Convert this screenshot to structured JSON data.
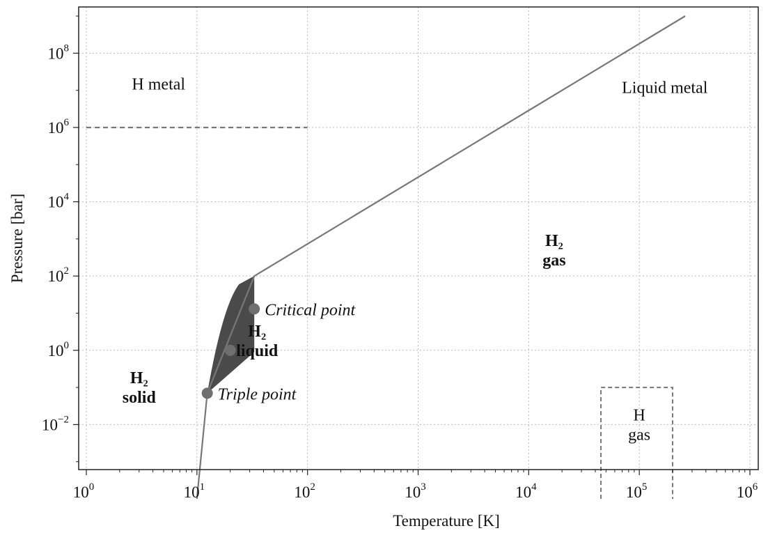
{
  "chart_data": {
    "type": "line",
    "title": "",
    "xlabel": "Temperature [K]",
    "ylabel": "Pressure [bar]",
    "xscale": "log",
    "yscale": "log",
    "xlim": [
      1,
      1000000
    ],
    "ylim": [
      0.0001,
      2000000000
    ],
    "grid": true,
    "x_ticks": [
      {
        "base": "10",
        "exp": "0",
        "value": 1
      },
      {
        "base": "10",
        "exp": "1",
        "value": 10
      },
      {
        "base": "10",
        "exp": "2",
        "value": 100
      },
      {
        "base": "10",
        "exp": "3",
        "value": 1000
      },
      {
        "base": "10",
        "exp": "4",
        "value": 10000
      },
      {
        "base": "10",
        "exp": "5",
        "value": 100000
      },
      {
        "base": "10",
        "exp": "6",
        "value": 1000000
      }
    ],
    "y_ticks": [
      {
        "base": "10",
        "exp": "−2",
        "value": 0.01
      },
      {
        "base": "10",
        "exp": "0",
        "value": 1
      },
      {
        "base": "10",
        "exp": "2",
        "value": 100
      },
      {
        "base": "10",
        "exp": "4",
        "value": 10000
      },
      {
        "base": "10",
        "exp": "6",
        "value": 1000000
      },
      {
        "base": "10",
        "exp": "8",
        "value": 100000000
      }
    ],
    "series": [
      {
        "style": "solid",
        "color": "#777777",
        "points": [
          [
            10,
            0.0001
          ],
          [
            12.4,
            0.07
          ],
          [
            33,
            100
          ],
          [
            260000,
            1000000000
          ]
        ]
      },
      {
        "style": "dashed",
        "color": "#777777",
        "points": [
          [
            1,
            1000000
          ],
          [
            100,
            1000000
          ]
        ]
      }
    ],
    "filled_region": {
      "color": "#4a4a4a",
      "points": [
        [
          12.4,
          0.07
        ],
        [
          17,
          15
        ],
        [
          24,
          60
        ],
        [
          33,
          100
        ],
        [
          33,
          0.9
        ]
      ]
    },
    "box": {
      "style": "dashed",
      "color": "#777777",
      "x_range": [
        45000,
        200000
      ],
      "y_range": [
        0.0001,
        0.1
      ]
    },
    "markers": [
      {
        "label": "Triple point",
        "x": 12.4,
        "y": 0.07
      },
      {
        "label": "",
        "x": 20,
        "y": 1
      },
      {
        "label": "Critical point",
        "x": 33,
        "y": 13
      }
    ],
    "regions": [
      {
        "id": "h-metal",
        "lines": [
          "H metal"
        ],
        "x": 4.5,
        "y": 15000000,
        "bold": false
      },
      {
        "id": "liquid-metal",
        "lines": [
          "Liquid metal"
        ],
        "x": 170000,
        "y": 12000000,
        "bold": false
      },
      {
        "id": "h2-gas",
        "lines": [
          "H₂",
          "gas"
        ],
        "x": 17000,
        "y": 500,
        "bold": true
      },
      {
        "id": "h2-liquid",
        "lines": [
          "H₂",
          "liquid"
        ],
        "x": 35,
        "y": 1.8,
        "bold": true
      },
      {
        "id": "h2-solid",
        "lines": [
          "H₂",
          "solid"
        ],
        "x": 3,
        "y": 0.1,
        "bold": true
      },
      {
        "id": "h-gas",
        "lines": [
          "H",
          "gas"
        ],
        "x": 100000,
        "y": 0.01,
        "bold": false
      }
    ]
  }
}
